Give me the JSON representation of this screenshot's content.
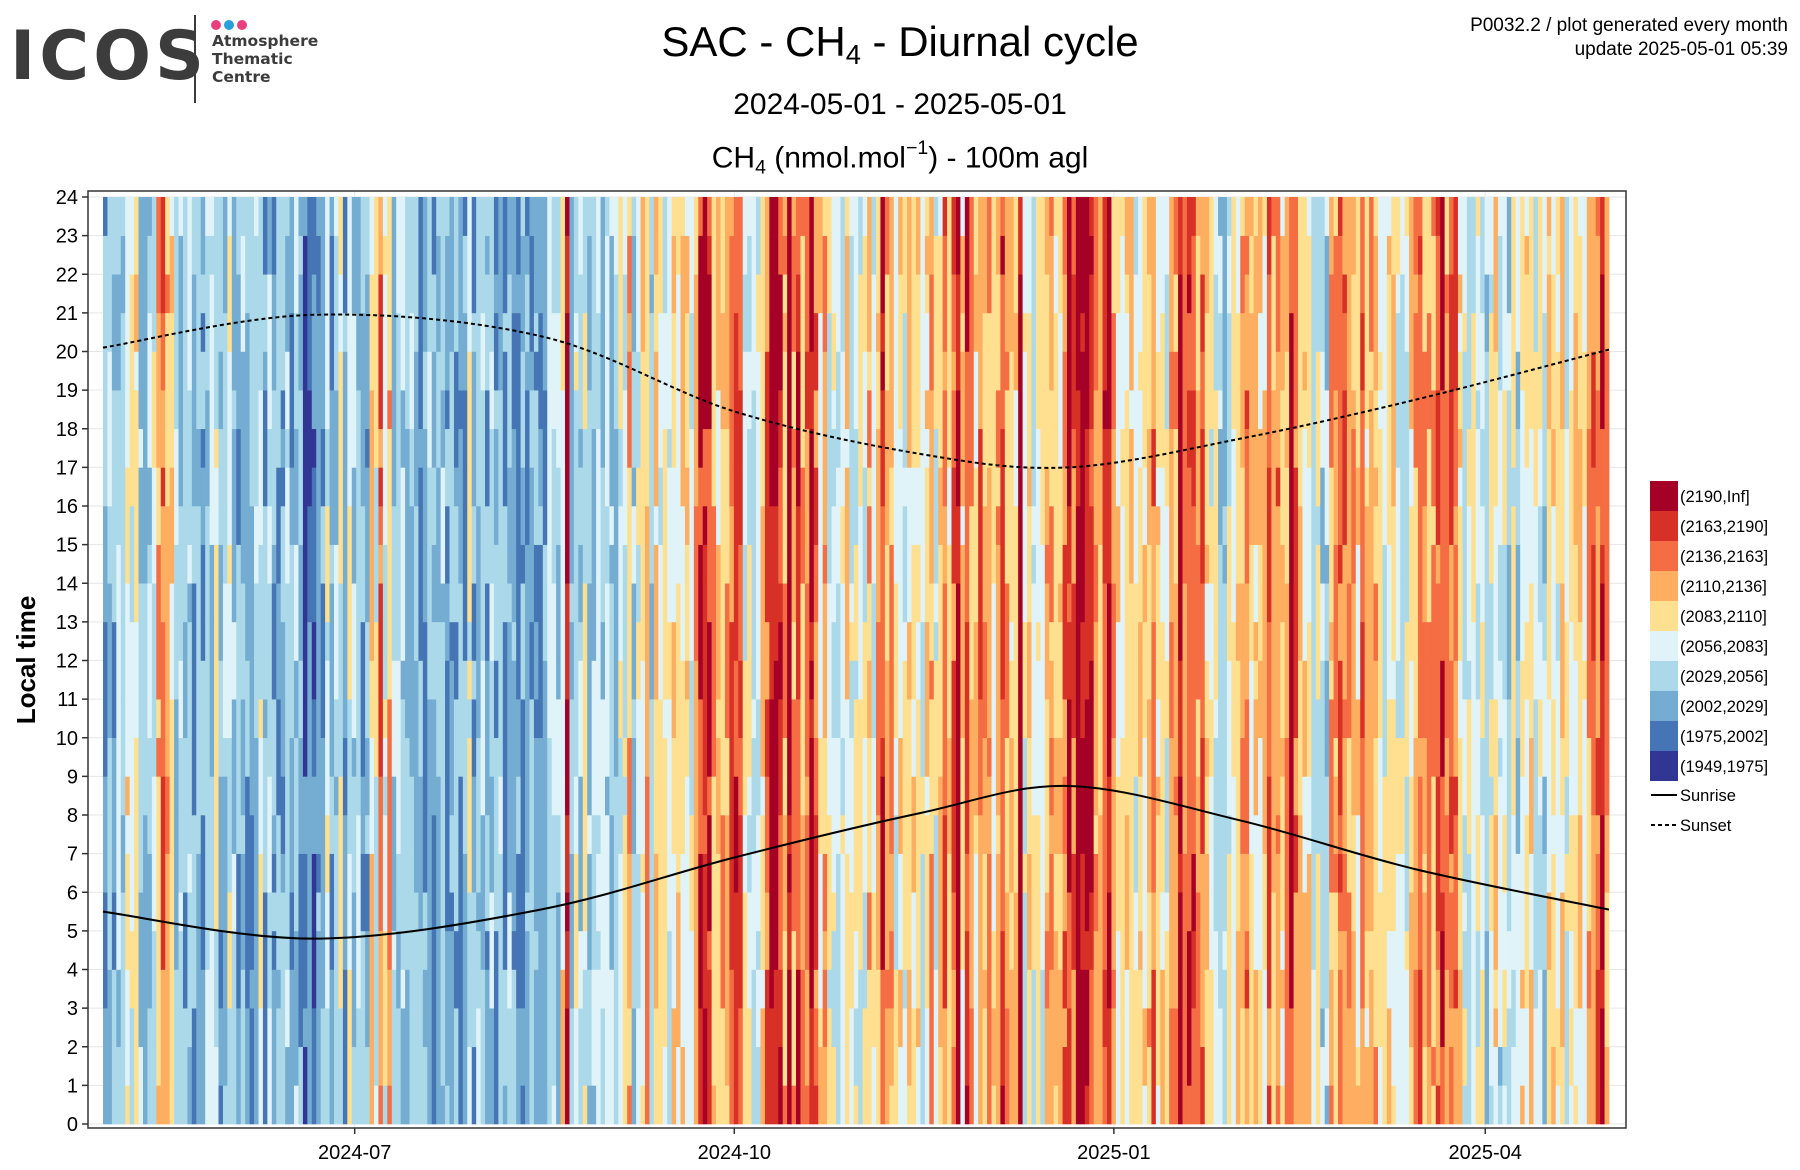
{
  "logo": {
    "word": "ICOS",
    "sub_lines": [
      "Atmosphere",
      "Thematic",
      "Centre"
    ],
    "dot_colors": [
      "#e8407e",
      "#2a9fd8",
      "#e8407e"
    ]
  },
  "info": {
    "line1": "P0032.2 / plot generated every month",
    "line2": "update  2025-05-01 05:39"
  },
  "title": {
    "prefix": "SAC - CH",
    "sub": "4",
    "suffix": " - Diurnal cycle"
  },
  "subtitle": "2024-05-01 - 2025-05-01",
  "plot_title": {
    "prefix": "CH",
    "sub": "4",
    "middle": " (nmol.mol",
    "sup": "−1",
    "suffix": ") - 100m agl"
  },
  "chart_data": {
    "type": "heatmap",
    "x_start": "2024-05-01",
    "x_end": "2025-05-01",
    "x_tick_labels": [
      "2024-07",
      "2024-10",
      "2025-01",
      "2025-04"
    ],
    "x_tick_dates": [
      "2024-07-01",
      "2024-10-01",
      "2025-01-01",
      "2025-04-01"
    ],
    "ylabel": "Local time",
    "ylim": [
      0,
      24
    ],
    "y_ticks": [
      0,
      1,
      2,
      3,
      4,
      5,
      6,
      7,
      8,
      9,
      10,
      11,
      12,
      13,
      14,
      15,
      16,
      17,
      18,
      19,
      20,
      21,
      22,
      23,
      24
    ],
    "legend": {
      "bins": [
        {
          "label": "(2190,Inf]",
          "color": "#a50026"
        },
        {
          "label": "(2163,2190]",
          "color": "#d73027"
        },
        {
          "label": "(2136,2163]",
          "color": "#f46d43"
        },
        {
          "label": "(2110,2136]",
          "color": "#fdae61"
        },
        {
          "label": "(2083,2110]",
          "color": "#fee090"
        },
        {
          "label": "(2056,2083]",
          "color": "#e0f3f8"
        },
        {
          "label": "(2029,2056]",
          "color": "#abd9e9"
        },
        {
          "label": "(2002,2029]",
          "color": "#74add1"
        },
        {
          "label": "(1975,2002]",
          "color": "#4575b4"
        },
        {
          "label": "(1949,1975]",
          "color": "#313695"
        }
      ],
      "lines": [
        {
          "label": "Sunrise",
          "style": "solid"
        },
        {
          "label": "Sunset",
          "style": "dashed"
        }
      ]
    },
    "daily_mean_bin": [
      7,
      6,
      7,
      6,
      6,
      4,
      5,
      4,
      6,
      7,
      6,
      5,
      3,
      2,
      3,
      4,
      6,
      6,
      7,
      6,
      7,
      6,
      7,
      6,
      6,
      5,
      7,
      6,
      5,
      6,
      7,
      6,
      7,
      7,
      6,
      5,
      7,
      6,
      7,
      7,
      7,
      6,
      7,
      6,
      7,
      8,
      8,
      8,
      7,
      7,
      5,
      7,
      6,
      5,
      7,
      5,
      6,
      6,
      7,
      7,
      4,
      5,
      2,
      5,
      3,
      6,
      6,
      6,
      7,
      6,
      6,
      7,
      7,
      6,
      7,
      7,
      6,
      7,
      7,
      7,
      7,
      7,
      5,
      7,
      6,
      6,
      7,
      6,
      7,
      6,
      7,
      6,
      7,
      7,
      7,
      7,
      7,
      7,
      7,
      7,
      6,
      6,
      6,
      4,
      0,
      6,
      5,
      6,
      5,
      6,
      6,
      5,
      6,
      6,
      6,
      6,
      5,
      5,
      3,
      6,
      5,
      4,
      3,
      6,
      4,
      5,
      5,
      5,
      4,
      4,
      4,
      4,
      5,
      3,
      1,
      1,
      1,
      3,
      4,
      3,
      3,
      2,
      1,
      2,
      5,
      5,
      5,
      5,
      4,
      2,
      0,
      0,
      1,
      3,
      0,
      3,
      1,
      3,
      2,
      0,
      2,
      4,
      3,
      5,
      5,
      5,
      5,
      4,
      5,
      5,
      5,
      5,
      3,
      5,
      3,
      1,
      3,
      3,
      5,
      4,
      5,
      4,
      4,
      4,
      5,
      4,
      3,
      5,
      4,
      2,
      4,
      2,
      0,
      4,
      1,
      3,
      4,
      2,
      3,
      3,
      4,
      3,
      1,
      3,
      4,
      4,
      0,
      5,
      4,
      5,
      5,
      5,
      3,
      3,
      4,
      4,
      2,
      1,
      2,
      0,
      0,
      0,
      1,
      3,
      3,
      1,
      0,
      3,
      4,
      5,
      4,
      4,
      5,
      4,
      4,
      3,
      2,
      4,
      4,
      5,
      3,
      3,
      0,
      2,
      1,
      1,
      3,
      2,
      4,
      5,
      5,
      6,
      6,
      5,
      5,
      4,
      3,
      2,
      4,
      4,
      4,
      4,
      2,
      3,
      2,
      4,
      3,
      1,
      2,
      4,
      4,
      4,
      6,
      5,
      6,
      6,
      3,
      3,
      2,
      2,
      3,
      3,
      4,
      2,
      4,
      3,
      3,
      4,
      5,
      4,
      4,
      5,
      5,
      5,
      4,
      3,
      2,
      3,
      3,
      3,
      2,
      1,
      3,
      2,
      2,
      4,
      5,
      5,
      5,
      5,
      5,
      6,
      5,
      4,
      6,
      5,
      6,
      5,
      6,
      4,
      4,
      4,
      5,
      5,
      6,
      4,
      4,
      5,
      4,
      5,
      5,
      4,
      4,
      5,
      3,
      2,
      2,
      1,
      3
    ],
    "sunrise_hours": [
      5.5,
      4.8,
      5.55,
      6.9,
      8.05,
      8.75,
      7.85,
      6.6,
      5.55
    ],
    "sunset_hours": [
      20.1,
      20.95,
      20.4,
      18.45,
      17.35,
      17.0,
      17.75,
      18.75,
      20.05
    ],
    "sun_line_dates": [
      "2024-05-01",
      "2024-06-21",
      "2024-08-15",
      "2024-10-01",
      "2024-11-15",
      "2024-12-21",
      "2025-02-01",
      "2025-03-15",
      "2025-05-01"
    ]
  }
}
